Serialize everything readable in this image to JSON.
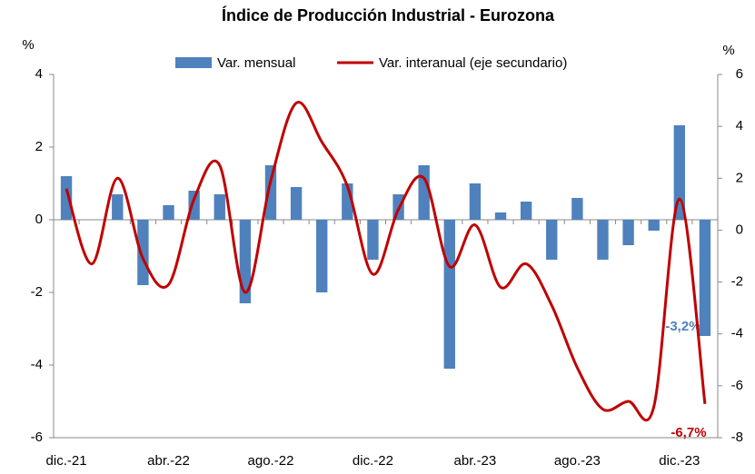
{
  "chart_data": {
    "type": "bar+line",
    "title": "Índice de Producción Industrial - Eurozona",
    "ylabel": "%",
    "y2label": "%",
    "categories": [
      "dic.-21",
      null,
      null,
      null,
      "abr.-22",
      null,
      null,
      null,
      "ago.-22",
      null,
      null,
      null,
      "dic.-22",
      null,
      null,
      null,
      "abr.-23",
      null,
      null,
      null,
      "ago.-23",
      null,
      null,
      null,
      "dic.-23",
      null
    ],
    "series": [
      {
        "name": "Var. mensual",
        "type": "bar",
        "color": "#4f81bd",
        "values": [
          1.2,
          0.0,
          0.7,
          -1.8,
          0.4,
          0.8,
          0.7,
          -2.3,
          1.5,
          0.9,
          -2.0,
          1.0,
          -1.1,
          0.7,
          1.5,
          -4.1,
          1.0,
          0.2,
          0.5,
          -1.1,
          0.6,
          -1.1,
          -0.7,
          -0.3,
          2.6,
          -3.2
        ],
        "value_labels": [
          null,
          null,
          null,
          null,
          null,
          null,
          null,
          null,
          null,
          null,
          null,
          null,
          null,
          null,
          null,
          null,
          null,
          null,
          null,
          null,
          null,
          null,
          null,
          null,
          null,
          "-3,2%"
        ]
      },
      {
        "name": "Var. interanual (eje secundario)",
        "type": "line",
        "axis": "y2",
        "color": "#c00000",
        "values": [
          1.6,
          -1.3,
          2.0,
          -1.1,
          -2.1,
          1.2,
          2.5,
          -2.4,
          1.9,
          4.9,
          3.4,
          1.7,
          -1.7,
          0.8,
          2.0,
          -1.4,
          0.2,
          -2.2,
          -1.3,
          -2.9,
          -5.3,
          -6.9,
          -6.6,
          -6.8,
          1.2,
          -6.7
        ],
        "value_labels": [
          null,
          null,
          null,
          null,
          null,
          null,
          null,
          null,
          null,
          null,
          null,
          null,
          null,
          null,
          null,
          null,
          null,
          null,
          null,
          null,
          null,
          null,
          null,
          null,
          null,
          "-6,7%"
        ]
      }
    ],
    "ylim": [
      -6,
      4
    ],
    "yticks": [
      -6,
      -4,
      -2,
      0,
      2,
      4
    ],
    "y2lim": [
      -8,
      6
    ],
    "y2ticks": [
      -8,
      -6,
      -4,
      -2,
      0,
      2,
      4,
      6
    ],
    "legend": "top",
    "grid": false
  }
}
